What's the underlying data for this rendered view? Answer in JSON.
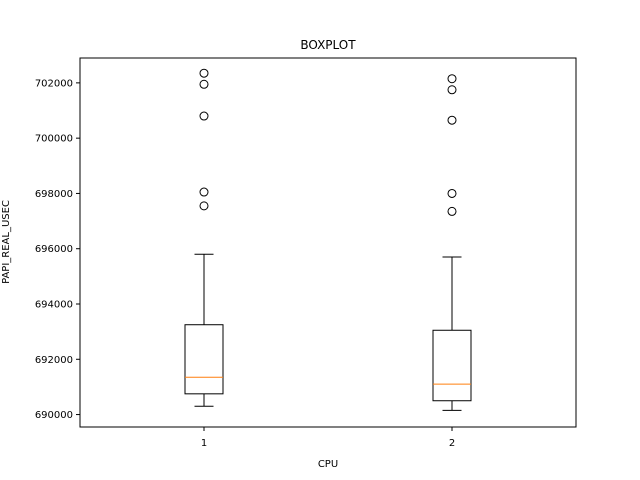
{
  "chart_data": {
    "type": "boxplot",
    "title": "BOXPLOT",
    "xlabel": "CPU",
    "ylabel": "PAPI_REAL_USEC",
    "categories": [
      "1",
      "2"
    ],
    "ylim": [
      689550,
      702900
    ],
    "yticks": [
      690000,
      692000,
      694000,
      696000,
      698000,
      700000,
      702000
    ],
    "ytick_labels": [
      "690000",
      "692000",
      "694000",
      "696000",
      "698000",
      "700000",
      "702000"
    ],
    "boxes": [
      {
        "category": "1",
        "whisker_low": 690300,
        "q1": 690750,
        "median": 691350,
        "q3": 693250,
        "whisker_high": 695800,
        "outliers": [
          697550,
          698050,
          700800,
          701950,
          702350
        ]
      },
      {
        "category": "2",
        "whisker_low": 690150,
        "q1": 690500,
        "median": 691100,
        "q3": 693050,
        "whisker_high": 695700,
        "outliers": [
          697350,
          698000,
          700650,
          701750,
          702150
        ]
      }
    ],
    "grid": false,
    "colors": {
      "box": "#000000",
      "median": "#ff7f0e",
      "outlier_edge": "#000000"
    }
  }
}
